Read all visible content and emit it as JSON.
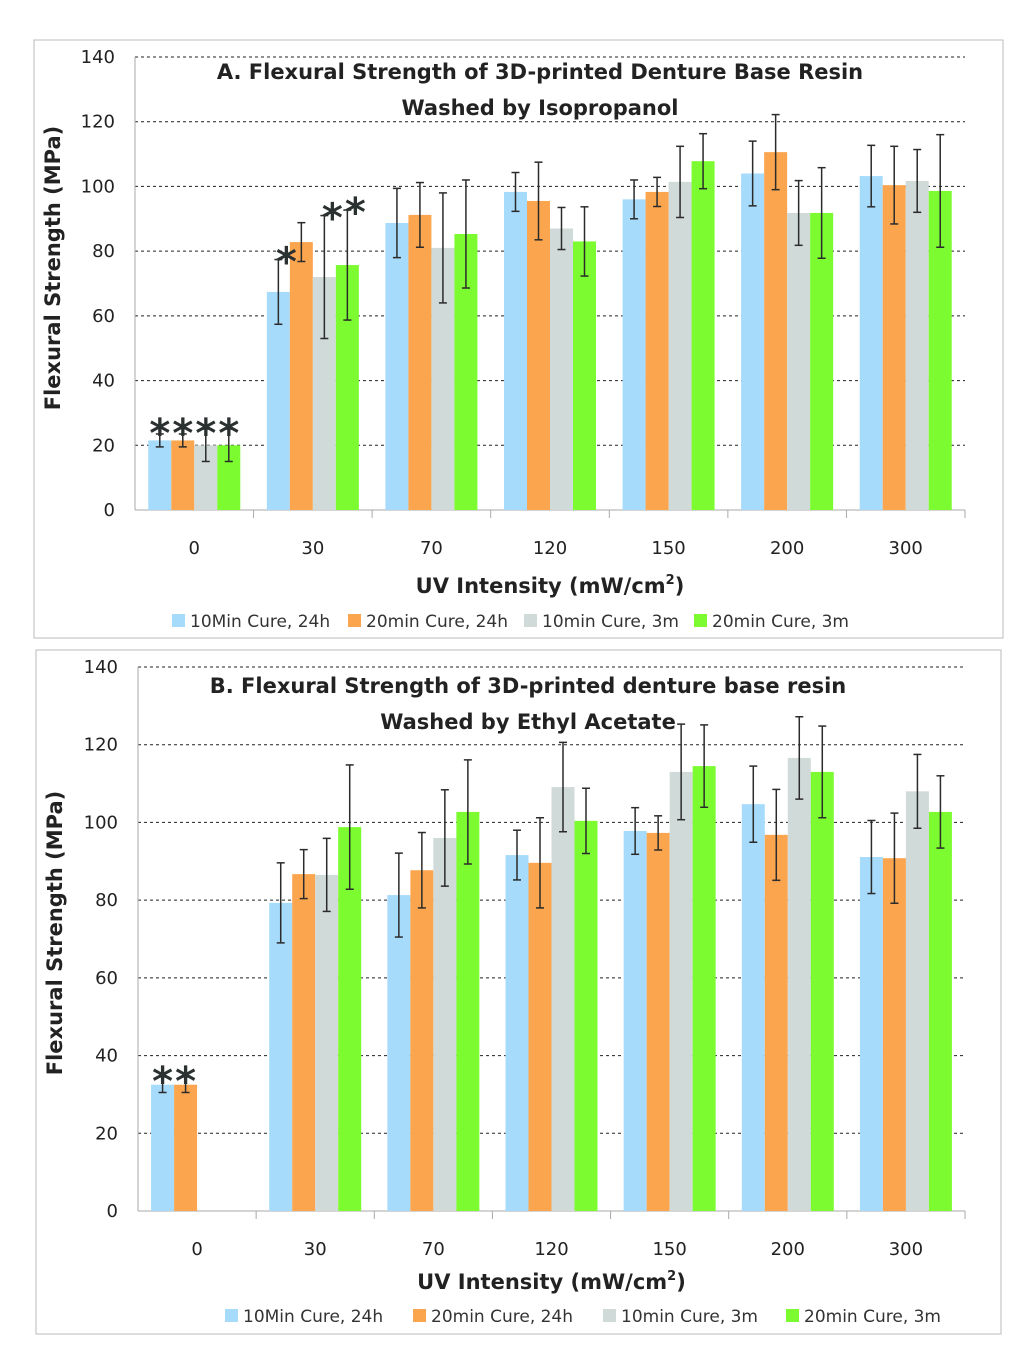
{
  "colors": {
    "series": [
      "#a6dbfb",
      "#fba64f",
      "#d0dad8",
      "#7cfc30"
    ],
    "grid": "#333333",
    "error": "#2b2b2b"
  },
  "chart_data": [
    {
      "type": "bar",
      "title": [
        "A. Flexural Strength of 3D-printed Denture Base Resin",
        "Washed by Isopropanol"
      ],
      "xlabel": "UV Intensity (mW/cm",
      "xlabel_sup": "2",
      "xlabel_end": ")",
      "ylabel": "Flexural Strength (MPa)",
      "ylim": [
        0,
        140
      ],
      "yticks": [
        "0",
        "20",
        "40",
        "60",
        "80",
        "100",
        "120",
        "140"
      ],
      "grid": true,
      "legend": "bottom",
      "categories": [
        "0",
        "30",
        "70",
        "120",
        "150",
        "200",
        "300"
      ],
      "series": [
        {
          "name": "10Min Cure, 24h",
          "values": [
            21.5,
            67.4,
            88.7,
            98.3,
            96,
            104,
            103.2
          ],
          "errors": [
            2,
            10,
            10.7,
            6,
            6,
            10,
            9.5
          ]
        },
        {
          "name": "20min Cure, 24h",
          "values": [
            21.5,
            82.8,
            91.2,
            95.5,
            98.3,
            110.6,
            100.4
          ],
          "errors": [
            2,
            6,
            10,
            12,
            4.5,
            11.6,
            12
          ]
        },
        {
          "name": "10min Cure, 3m",
          "values": [
            20,
            72,
            81,
            87,
            101.4,
            91.8,
            101.7
          ],
          "errors": [
            5,
            19,
            17,
            6.5,
            11,
            10,
            9.7
          ]
        },
        {
          "name": "20min Cure, 3m",
          "values": [
            20,
            75.7,
            85.3,
            83,
            107.8,
            91.8,
            98.6
          ],
          "errors": [
            5,
            17,
            16.7,
            10.7,
            8.5,
            14,
            17.4
          ]
        }
      ],
      "annotations": [
        {
          "text": "*",
          "category": "0",
          "series": [
            0,
            1,
            2,
            3
          ]
        },
        {
          "text": "*",
          "category": "30",
          "series": [
            0,
            2,
            3
          ]
        }
      ]
    },
    {
      "type": "bar",
      "title": [
        "B. Flexural Strength of 3D-printed denture base resin",
        "Washed by Ethyl Acetate"
      ],
      "xlabel": "UV Intensity (mW/cm",
      "xlabel_sup": "2",
      "xlabel_end": ")",
      "ylabel": "Flexural Strength (MPa)",
      "ylim": [
        0,
        140
      ],
      "yticks": [
        "0",
        "20",
        "40",
        "60",
        "80",
        "100",
        "120",
        "140"
      ],
      "grid": true,
      "legend": "bottom",
      "categories": [
        "0",
        "30",
        "70",
        "120",
        "150",
        "200",
        "300"
      ],
      "series": [
        {
          "name": "10Min Cure, 24h",
          "values": [
            32.5,
            79.3,
            81.3,
            91.6,
            97.8,
            104.7,
            91.1
          ],
          "errors": [
            2,
            10.3,
            10.8,
            6.4,
            6,
            9.8,
            9.4
          ]
        },
        {
          "name": "20min Cure, 24h",
          "values": [
            32.5,
            86.7,
            87.7,
            89.6,
            97.3,
            96.8,
            90.8
          ],
          "errors": [
            2,
            6.3,
            9.7,
            11.6,
            4.4,
            11.7,
            11.6
          ]
        },
        {
          "name": "10min Cure, 3m",
          "values": [
            null,
            86.5,
            96,
            109.1,
            113,
            116.6,
            108
          ],
          "errors": [
            null,
            9.4,
            12.4,
            11.5,
            12.3,
            10.6,
            9.5
          ]
        },
        {
          "name": "20min Cure, 3m",
          "values": [
            null,
            98.8,
            102.7,
            100.4,
            114.5,
            113,
            102.7
          ],
          "errors": [
            null,
            16,
            13.4,
            8.4,
            10.6,
            11.8,
            9.3
          ]
        }
      ],
      "annotations": [
        {
          "text": "*",
          "category": "0",
          "series": [
            0,
            1
          ]
        }
      ]
    }
  ]
}
